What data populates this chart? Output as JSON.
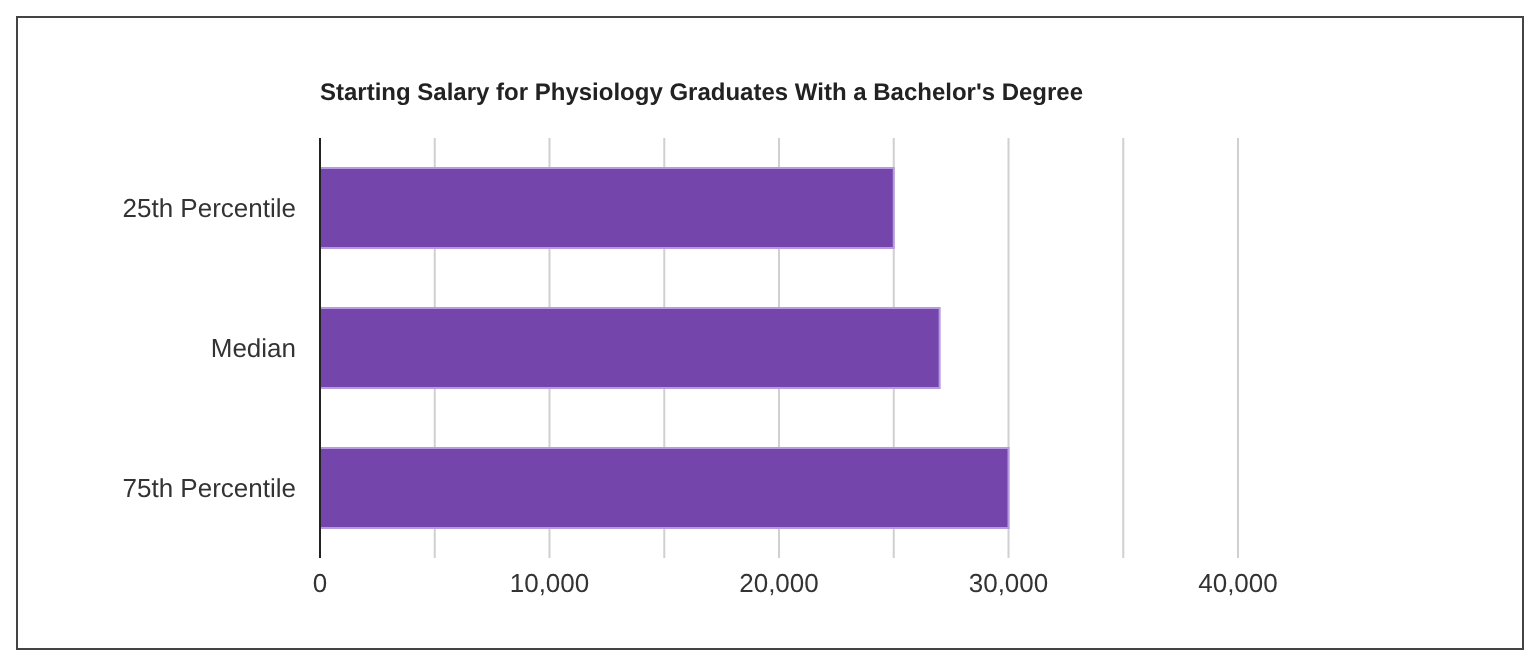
{
  "chart_data": {
    "type": "bar",
    "orientation": "horizontal",
    "title": "Starting Salary for Physiology Graduates With a Bachelor's Degree",
    "categories": [
      "25th Percentile",
      "Median",
      "75th Percentile"
    ],
    "values": [
      25000,
      27000,
      30000
    ],
    "color": "#7446ac",
    "xlim": [
      0,
      40000
    ],
    "xticks": [
      0,
      {
        "value": 5000,
        "label": null
      },
      {
        "value": 10000,
        "label": "10,000"
      },
      {
        "value": 15000,
        "label": null
      },
      {
        "value": 20000,
        "label": "20,000"
      },
      {
        "value": 25000,
        "label": null
      },
      {
        "value": 30000,
        "label": "30,000"
      },
      {
        "value": 35000,
        "label": null
      },
      {
        "value": 40000,
        "label": "40,000"
      }
    ],
    "grid": "x",
    "legend": false
  }
}
